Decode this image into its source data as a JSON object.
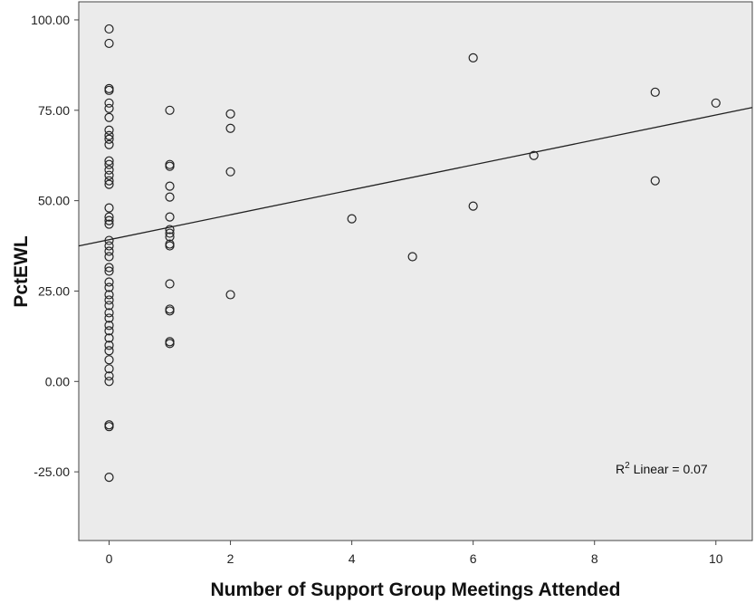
{
  "chart_data": {
    "type": "scatter",
    "title": "",
    "xlabel": "Number of Support Group Meetings Attended",
    "ylabel": "PctEWL",
    "xlim": [
      -0.5,
      10.6
    ],
    "ylim": [
      -44,
      105
    ],
    "xticks": [
      0,
      2,
      4,
      6,
      8,
      10
    ],
    "xtick_labels": [
      "0",
      "2",
      "4",
      "6",
      "8",
      "10"
    ],
    "yticks": [
      -25,
      0,
      25,
      50,
      75,
      100
    ],
    "ytick_labels": [
      "-25.00",
      "0.00",
      "25.00",
      "50.00",
      "75.00",
      "100.00"
    ],
    "grid": false,
    "background": "#ebebeb",
    "marker_color": "#222222",
    "fit_line": {
      "label_prefix": "R",
      "label_sup": "2",
      "label_rest": " Linear = 0.07",
      "intercept": 39.2,
      "slope": 3.45
    },
    "points": [
      {
        "x": 0,
        "y": 97.5
      },
      {
        "x": 0,
        "y": 93.5
      },
      {
        "x": 0,
        "y": 81
      },
      {
        "x": 0,
        "y": 80.5
      },
      {
        "x": 0,
        "y": 77
      },
      {
        "x": 0,
        "y": 75.5
      },
      {
        "x": 0,
        "y": 73
      },
      {
        "x": 0,
        "y": 69.5
      },
      {
        "x": 0,
        "y": 68
      },
      {
        "x": 0,
        "y": 67
      },
      {
        "x": 0,
        "y": 65.5
      },
      {
        "x": 0,
        "y": 61
      },
      {
        "x": 0,
        "y": 60
      },
      {
        "x": 0,
        "y": 58.5
      },
      {
        "x": 0,
        "y": 57
      },
      {
        "x": 0,
        "y": 55.5
      },
      {
        "x": 0,
        "y": 54.5
      },
      {
        "x": 0,
        "y": 48
      },
      {
        "x": 0,
        "y": 45.5
      },
      {
        "x": 0,
        "y": 44.5
      },
      {
        "x": 0,
        "y": 43.5
      },
      {
        "x": 0,
        "y": 39
      },
      {
        "x": 0,
        "y": 37.5
      },
      {
        "x": 0,
        "y": 36
      },
      {
        "x": 0,
        "y": 34.5
      },
      {
        "x": 0,
        "y": 31.5
      },
      {
        "x": 0,
        "y": 30.5
      },
      {
        "x": 0,
        "y": 27.5
      },
      {
        "x": 0,
        "y": 26
      },
      {
        "x": 0,
        "y": 24
      },
      {
        "x": 0,
        "y": 22.5
      },
      {
        "x": 0,
        "y": 21
      },
      {
        "x": 0,
        "y": 19
      },
      {
        "x": 0,
        "y": 17.5
      },
      {
        "x": 0,
        "y": 15.5
      },
      {
        "x": 0,
        "y": 14
      },
      {
        "x": 0,
        "y": 12
      },
      {
        "x": 0,
        "y": 10
      },
      {
        "x": 0,
        "y": 8.5
      },
      {
        "x": 0,
        "y": 6
      },
      {
        "x": 0,
        "y": 3.5
      },
      {
        "x": 0,
        "y": 1.5
      },
      {
        "x": 0,
        "y": 0
      },
      {
        "x": 0,
        "y": -12
      },
      {
        "x": 0,
        "y": -12.5
      },
      {
        "x": 0,
        "y": -26.5
      },
      {
        "x": 1,
        "y": 75
      },
      {
        "x": 1,
        "y": 60
      },
      {
        "x": 1,
        "y": 59.5
      },
      {
        "x": 1,
        "y": 54
      },
      {
        "x": 1,
        "y": 51
      },
      {
        "x": 1,
        "y": 45.5
      },
      {
        "x": 1,
        "y": 42
      },
      {
        "x": 1,
        "y": 41
      },
      {
        "x": 1,
        "y": 40
      },
      {
        "x": 1,
        "y": 38
      },
      {
        "x": 1,
        "y": 37.5
      },
      {
        "x": 1,
        "y": 27
      },
      {
        "x": 1,
        "y": 20
      },
      {
        "x": 1,
        "y": 19.5
      },
      {
        "x": 1,
        "y": 11
      },
      {
        "x": 1,
        "y": 10.5
      },
      {
        "x": 2,
        "y": 74
      },
      {
        "x": 2,
        "y": 70
      },
      {
        "x": 2,
        "y": 58
      },
      {
        "x": 2,
        "y": 24
      },
      {
        "x": 4,
        "y": 45
      },
      {
        "x": 5,
        "y": 34.5
      },
      {
        "x": 6,
        "y": 89.5
      },
      {
        "x": 6,
        "y": 48.5
      },
      {
        "x": 7,
        "y": 62.5
      },
      {
        "x": 9,
        "y": 80
      },
      {
        "x": 9,
        "y": 55.5
      },
      {
        "x": 10,
        "y": 77
      }
    ]
  }
}
